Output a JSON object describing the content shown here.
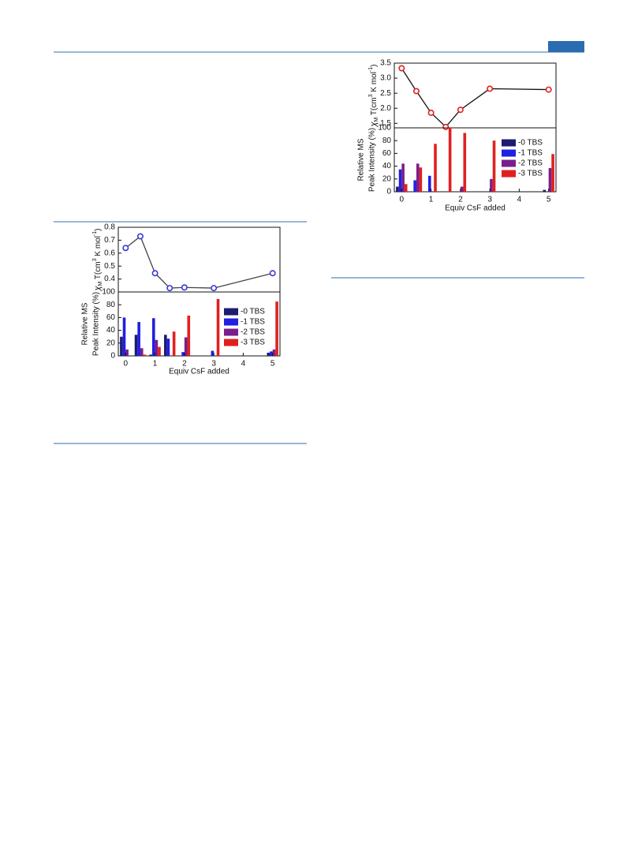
{
  "chart_data": [
    {
      "type": "line",
      "ylabel": [
        "χ",
        "M",
        " T(cm",
        "3",
        " K mol",
        "-1",
        ")"
      ],
      "x": [
        0,
        0.5,
        1,
        1.5,
        2,
        3,
        5
      ],
      "values": [
        0.64,
        0.73,
        0.445,
        0.33,
        0.335,
        0.33,
        0.445
      ],
      "color": "#444444",
      "marker_color": "#3a3ad8",
      "xlim": [
        -0.25,
        5.25
      ],
      "ylim": [
        0.3,
        0.8
      ],
      "yticks": [
        0.4,
        0.5,
        0.6,
        0.7,
        0.8
      ]
    },
    {
      "type": "bar",
      "ylabel": [
        "Relative MS",
        "Peak Intensity (%)"
      ],
      "xlabel": "Equiv CsF added",
      "x": [
        0,
        0.5,
        1,
        1.5,
        2,
        3,
        5
      ],
      "series": [
        {
          "name": "-0 TBS",
          "color": "#1c1c72",
          "values": [
            30,
            33,
            2,
            33,
            0,
            0,
            5
          ]
        },
        {
          "name": "-1 TBS",
          "color": "#2020e0",
          "values": [
            60,
            53,
            59,
            27,
            6,
            8,
            7
          ]
        },
        {
          "name": "-2 TBS",
          "color": "#7a1e8c",
          "values": [
            10,
            12,
            25,
            0,
            29,
            0,
            10
          ]
        },
        {
          "name": "-3 TBS",
          "color": "#e02020",
          "values": [
            0,
            2,
            14,
            38,
            63,
            89,
            85
          ]
        }
      ],
      "xlim": [
        -0.25,
        5.25
      ],
      "xticks": [
        0,
        1,
        2,
        3,
        4,
        5
      ],
      "ylim": [
        0,
        100
      ],
      "yticks": [
        0,
        20,
        40,
        60,
        80,
        100
      ]
    },
    {
      "type": "line",
      "ylabel": [
        "χ",
        "M",
        " T(cm",
        "3",
        " K mol",
        "-1",
        ")"
      ],
      "x": [
        0,
        0.5,
        1,
        1.5,
        2,
        3,
        5
      ],
      "values": [
        3.33,
        2.57,
        1.85,
        1.38,
        1.95,
        2.65,
        2.62
      ],
      "color": "#111111",
      "marker_color": "#e02020",
      "xlim": [
        -0.25,
        5.25
      ],
      "ylim": [
        1.35,
        3.5
      ],
      "yticks": [
        1.5,
        {
          "value": 2,
          "label": "2.0"
        },
        2.5,
        {
          "value": 3,
          "label": "3.0"
        },
        3.5
      ]
    },
    {
      "type": "bar",
      "ylabel": [
        "Relative MS",
        "Peak Intensity (%)"
      ],
      "xlabel": "Equiv CsF added",
      "x": [
        0,
        0.5,
        1,
        1.5,
        2,
        3,
        5
      ],
      "series": [
        {
          "name": "-0 TBS",
          "color": "#1c1c72",
          "values": [
            8,
            0,
            0,
            0,
            0,
            0,
            3
          ]
        },
        {
          "name": "-1 TBS",
          "color": "#2020e0",
          "values": [
            35,
            18,
            25,
            0,
            0,
            0,
            0
          ]
        },
        {
          "name": "-2 TBS",
          "color": "#7a1e8c",
          "values": [
            44,
            44,
            0,
            0,
            8,
            20,
            37
          ]
        },
        {
          "name": "-3 TBS",
          "color": "#e02020",
          "values": [
            12,
            38,
            75,
            100,
            92,
            80,
            59
          ]
        }
      ],
      "xlim": [
        -0.25,
        5.25
      ],
      "xticks": [
        0,
        1,
        2,
        3,
        4,
        5
      ],
      "ylim": [
        0,
        100
      ],
      "yticks": [
        0,
        20,
        40,
        60,
        80,
        100
      ]
    }
  ]
}
